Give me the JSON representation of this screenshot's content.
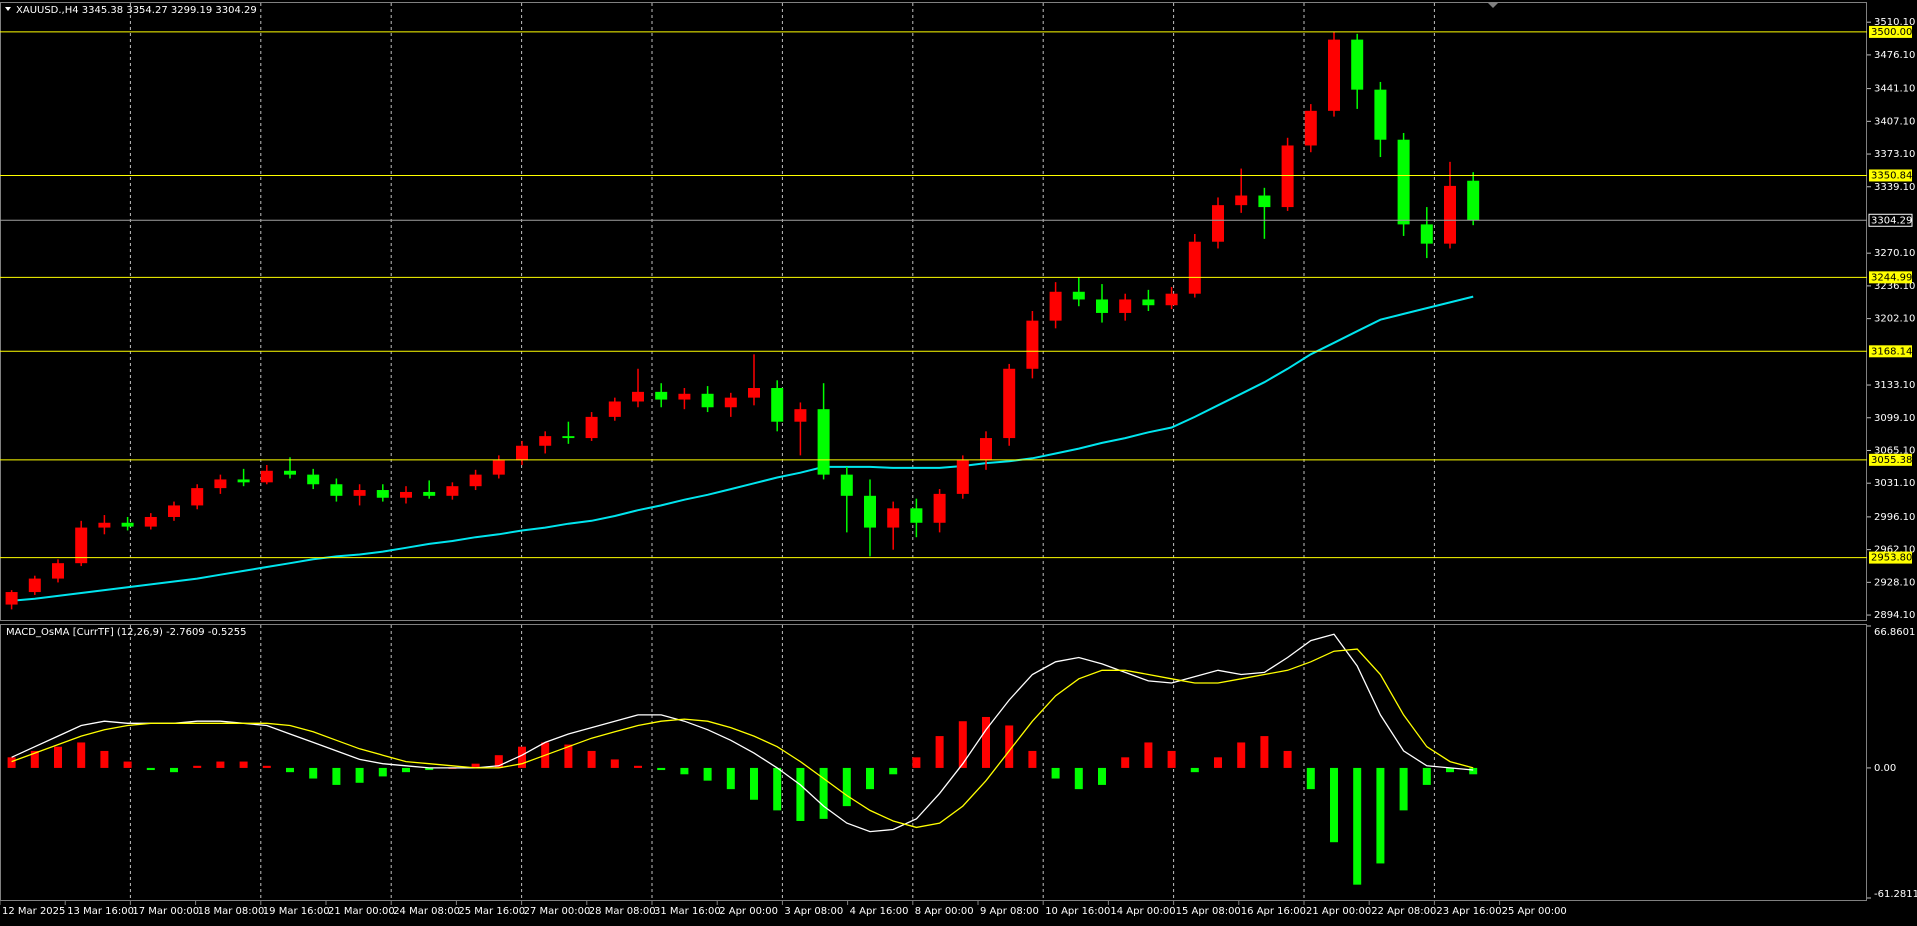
{
  "chart_data": [
    {
      "type": "candlestick",
      "title": "XAUUSD.,H4  3345.38 3354.27 3299.19 3304.29",
      "up_color": "#ff0000",
      "down_color": "#00ff00",
      "ylim": [
        2890,
        3529
      ],
      "yticks": [
        {
          "value": 3510.1,
          "label": "3510.10"
        },
        {
          "value": 3476.1,
          "label": "3476.10"
        },
        {
          "value": 3441.1,
          "label": "3441.10"
        },
        {
          "value": 3407.1,
          "label": "3407.10"
        },
        {
          "value": 3373.1,
          "label": "3373.10"
        },
        {
          "value": 3339.1,
          "label": "3339.10"
        },
        {
          "value": 3270.1,
          "label": "3270.10"
        },
        {
          "value": 3236.1,
          "label": "3236.10"
        },
        {
          "value": 3202.1,
          "label": "3202.10"
        },
        {
          "value": 3133.1,
          "label": "3133.10"
        },
        {
          "value": 3099.1,
          "label": "3099.10"
        },
        {
          "value": 3065.1,
          "label": "3065.10"
        },
        {
          "value": 3031.1,
          "label": "3031.10"
        },
        {
          "value": 2996.1,
          "label": "2996.10"
        },
        {
          "value": 2962.1,
          "label": "2962.10"
        },
        {
          "value": 2928.1,
          "label": "2928.10"
        },
        {
          "value": 2894.1,
          "label": "2894.10"
        }
      ],
      "levels": [
        {
          "value": 3500,
          "label": "3500.00"
        },
        {
          "value": 3350.84,
          "label": "3350.84"
        },
        {
          "value": 3244.99,
          "label": "3244.99"
        },
        {
          "value": 3168.14,
          "label": "3168.14"
        },
        {
          "value": 3055.38,
          "label": "3055.38"
        },
        {
          "value": 2953.8,
          "label": "2953.80"
        }
      ],
      "level_color": "#ffff00",
      "current_price": {
        "value": 3304.29,
        "label": "3304.29"
      },
      "grid": true,
      "time_labels": [
        "12 Mar 2025",
        "13 Mar 16:00",
        "17 Mar 00:00",
        "18 Mar 08:00",
        "19 Mar 16:00",
        "21 Mar 00:00",
        "24 Mar 08:00",
        "25 Mar 16:00",
        "27 Mar 00:00",
        "28 Mar 08:00",
        "31 Mar 16:00",
        "2 Apr 00:00",
        "3 Apr 08:00",
        "4 Apr 16:00",
        "8 Apr 00:00",
        "9 Apr 08:00",
        "10 Apr 16:00",
        "14 Apr 00:00",
        "15 Apr 08:00",
        "16 Apr 16:00",
        "21 Apr 00:00",
        "22 Apr 08:00",
        "23 Apr 16:00",
        "25 Apr 00:00"
      ],
      "ohlc": [
        [
          2905,
          2920,
          2900,
          2918
        ],
        [
          2918,
          2935,
          2915,
          2932
        ],
        [
          2932,
          2952,
          2928,
          2948
        ],
        [
          2948,
          2992,
          2945,
          2985
        ],
        [
          2985,
          2998,
          2978,
          2990
        ],
        [
          2990,
          2996,
          2982,
          2986
        ],
        [
          2986,
          3000,
          2983,
          2996
        ],
        [
          2996,
          3012,
          2992,
          3008
        ],
        [
          3008,
          3030,
          3004,
          3026
        ],
        [
          3026,
          3040,
          3020,
          3035
        ],
        [
          3035,
          3046,
          3028,
          3032
        ],
        [
          3032,
          3050,
          3030,
          3044
        ],
        [
          3044,
          3058,
          3036,
          3040
        ],
        [
          3040,
          3046,
          3025,
          3030
        ],
        [
          3030,
          3036,
          3012,
          3018
        ],
        [
          3018,
          3030,
          3008,
          3024
        ],
        [
          3024,
          3030,
          3012,
          3016
        ],
        [
          3016,
          3028,
          3010,
          3022
        ],
        [
          3022,
          3034,
          3015,
          3018
        ],
        [
          3018,
          3032,
          3014,
          3028
        ],
        [
          3028,
          3045,
          3024,
          3040
        ],
        [
          3040,
          3060,
          3036,
          3055
        ],
        [
          3055,
          3075,
          3050,
          3070
        ],
        [
          3070,
          3085,
          3062,
          3080
        ],
        [
          3080,
          3095,
          3072,
          3078
        ],
        [
          3078,
          3105,
          3075,
          3100
        ],
        [
          3100,
          3120,
          3096,
          3116
        ],
        [
          3116,
          3150,
          3110,
          3126
        ],
        [
          3126,
          3135,
          3110,
          3118
        ],
        [
          3118,
          3130,
          3108,
          3124
        ],
        [
          3124,
          3132,
          3105,
          3110
        ],
        [
          3110,
          3125,
          3100,
          3120
        ],
        [
          3120,
          3165,
          3112,
          3130
        ],
        [
          3130,
          3138,
          3085,
          3095
        ],
        [
          3095,
          3115,
          3060,
          3108
        ],
        [
          3108,
          3135,
          3035,
          3040
        ],
        [
          3040,
          3048,
          2980,
          3018
        ],
        [
          3018,
          3035,
          2955,
          2985
        ],
        [
          2985,
          3012,
          2962,
          3005
        ],
        [
          3005,
          3015,
          2975,
          2990
        ],
        [
          2990,
          3025,
          2980,
          3020
        ],
        [
          3020,
          3060,
          3015,
          3055
        ],
        [
          3055,
          3085,
          3045,
          3078
        ],
        [
          3078,
          3155,
          3070,
          3150
        ],
        [
          3150,
          3210,
          3140,
          3200
        ],
        [
          3200,
          3240,
          3192,
          3230
        ],
        [
          3230,
          3245,
          3215,
          3222
        ],
        [
          3222,
          3238,
          3198,
          3208
        ],
        [
          3208,
          3228,
          3200,
          3222
        ],
        [
          3222,
          3232,
          3210,
          3216
        ],
        [
          3216,
          3235,
          3212,
          3228
        ],
        [
          3228,
          3290,
          3224,
          3282
        ],
        [
          3282,
          3328,
          3275,
          3320
        ],
        [
          3320,
          3358,
          3312,
          3330
        ],
        [
          3330,
          3338,
          3285,
          3318
        ],
        [
          3318,
          3390,
          3314,
          3382
        ],
        [
          3382,
          3425,
          3375,
          3418
        ],
        [
          3418,
          3500,
          3412,
          3492
        ],
        [
          3492,
          3498,
          3420,
          3440
        ],
        [
          3440,
          3448,
          3370,
          3388
        ],
        [
          3388,
          3395,
          3288,
          3300
        ],
        [
          3300,
          3318,
          3265,
          3280
        ],
        [
          3280,
          3365,
          3275,
          3340
        ],
        [
          3345.38,
          3354.27,
          3299.19,
          3304.29
        ]
      ],
      "ma": {
        "color": "#00e5ee",
        "values": [
          2909,
          2911,
          2914,
          2917,
          2920,
          2923,
          2926,
          2929,
          2932,
          2936,
          2940,
          2944,
          2948,
          2952,
          2955,
          2957,
          2960,
          2964,
          2968,
          2971,
          2975,
          2978,
          2982,
          2985,
          2989,
          2992,
          2997,
          3003,
          3008,
          3014,
          3019,
          3025,
          3031,
          3037,
          3042,
          3048,
          3048,
          3048,
          3047,
          3047,
          3047,
          3049,
          3052,
          3054,
          3057,
          3062,
          3067,
          3073,
          3078,
          3084,
          3089,
          3100,
          3112,
          3124,
          3136,
          3150,
          3165,
          3177,
          3189,
          3201,
          3207,
          3213,
          3219,
          3225
        ]
      }
    },
    {
      "type": "macd",
      "title": "MACD_OsMA [CurrTF] (12,26,9) -2.7609 -0.5255",
      "ylim": [
        -61.2811,
        66.8601
      ],
      "yticks": [
        66.8601,
        {
          "value": 0,
          "label": "0.00"
        },
        -61.2811
      ],
      "pos_color": "#ff0000",
      "neg_color": "#00ff00",
      "histogram": [
        5,
        8,
        10,
        12,
        8,
        3,
        -1,
        -2,
        1,
        3,
        3,
        1,
        -2,
        -5,
        -8,
        -7,
        -4,
        -2,
        -1,
        0,
        2,
        6,
        10,
        12,
        11,
        8,
        4,
        1,
        -1,
        -3,
        -6,
        -10,
        -15,
        -20,
        -25,
        -24,
        -18,
        -10,
        -3,
        5,
        15,
        22,
        24,
        20,
        8,
        -5,
        -10,
        -8,
        5,
        12,
        8,
        -2,
        5,
        12,
        15,
        8,
        -10,
        -35,
        -55,
        -45,
        -20,
        -8,
        -2,
        -3
      ],
      "main": {
        "color": "#ffffff",
        "values": [
          5,
          10,
          15,
          20,
          22,
          21,
          21,
          21,
          22,
          22,
          21,
          20,
          16,
          12,
          8,
          4,
          2,
          1,
          0,
          0,
          0,
          1,
          6,
          12,
          16,
          19,
          22,
          25,
          25,
          22,
          18,
          13,
          7,
          0,
          -8,
          -18,
          -26,
          -30,
          -29,
          -24,
          -12,
          2,
          18,
          32,
          44,
          50,
          52,
          49,
          45,
          41,
          40,
          43,
          46,
          44,
          45,
          52,
          60,
          63,
          48,
          25,
          8,
          1,
          0,
          -1
        ]
      },
      "signal": {
        "color": "#ffff00",
        "values": [
          3,
          7,
          11,
          15,
          18,
          20,
          21,
          21,
          21,
          21,
          21,
          21,
          20,
          17,
          13,
          9,
          6,
          3,
          2,
          1,
          0,
          0,
          2,
          6,
          10,
          14,
          17,
          20,
          22,
          23,
          22,
          19,
          15,
          10,
          3,
          -5,
          -13,
          -20,
          -25,
          -28,
          -26,
          -18,
          -6,
          8,
          22,
          34,
          42,
          46,
          46,
          44,
          42,
          40,
          40,
          42,
          44,
          46,
          50,
          55,
          56,
          44,
          25,
          10,
          3,
          0
        ]
      }
    }
  ]
}
